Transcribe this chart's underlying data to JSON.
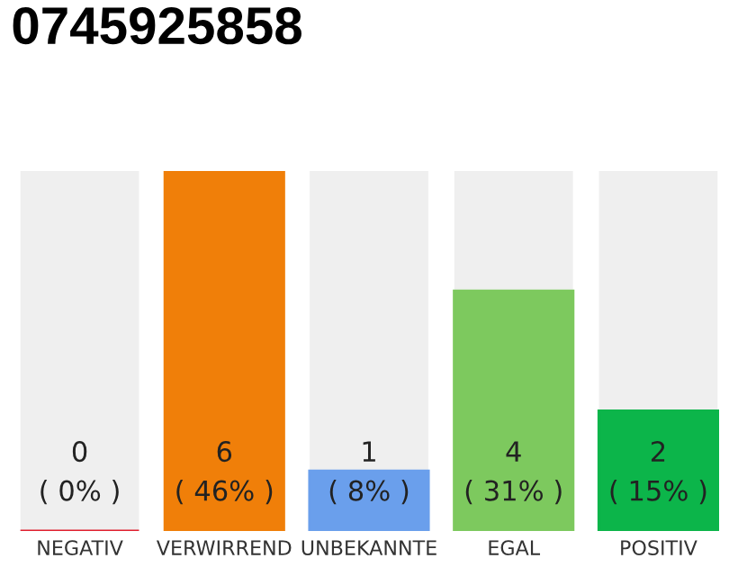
{
  "chart_data": {
    "type": "bar",
    "title": "0745925858",
    "categories": [
      "NEGATIV",
      "VERWIRREND",
      "UNBEKANNTE",
      "EGAL",
      "POSITIV"
    ],
    "values": [
      0,
      6,
      1,
      4,
      2
    ],
    "colors": [
      "#e0202f",
      "#f07f09",
      "#6a9fec",
      "#7dc95e",
      "#0cb54a"
    ],
    "tick_labels": "x",
    "grid": false,
    "legend": false,
    "value_labels": [
      "0\n( 0% )",
      "6\n( 46% )",
      "1\n( 8% )",
      "4\n( 31% )",
      "2\n( 15% )"
    ]
  }
}
